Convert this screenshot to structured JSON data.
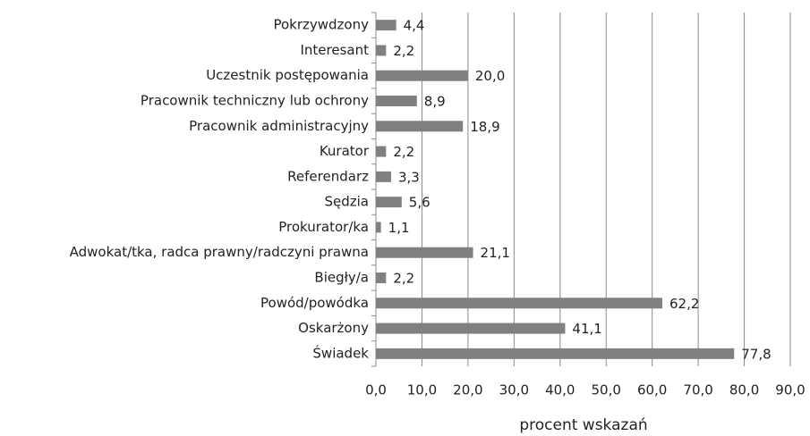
{
  "chart_data": {
    "type": "hbar",
    "x_label": "procent wskazań",
    "categories": [
      "Pokrzywdzony",
      "Interesant",
      "Uczestnik postępowania",
      "Pracownik techniczny lub ochrony",
      "Pracownik administracyjny",
      "Kurator",
      "Referendarz",
      "Sędzia",
      "Prokurator/ka",
      "Adwokat/tka, radca prawny/radczyni prawna",
      "Biegły/a",
      "Powód/powódka",
      "Oskarżony",
      "Świadek"
    ],
    "values": [
      4.4,
      2.2,
      20.0,
      8.9,
      18.9,
      2.2,
      3.3,
      5.6,
      1.1,
      21.1,
      2.2,
      62.2,
      41.1,
      77.8
    ],
    "value_labels": [
      "4,4",
      "2,2",
      "20,0",
      "8,9",
      "18,9",
      "2,2",
      "3,3",
      "5,6",
      "1,1",
      "21,1",
      "2,2",
      "62,2",
      "41,1",
      "77,8"
    ],
    "color": "#808080",
    "xlim": [
      0,
      90
    ],
    "xticks": [
      {
        "value": 0,
        "label": "0,0"
      },
      {
        "value": 10,
        "label": "10,0"
      },
      {
        "value": 20,
        "label": "20,0"
      },
      {
        "value": 30,
        "label": "30,0"
      },
      {
        "value": 40,
        "label": "40,0"
      },
      {
        "value": 50,
        "label": "50,0"
      },
      {
        "value": 60,
        "label": "60,0"
      },
      {
        "value": 70,
        "label": "70,0"
      },
      {
        "value": 80,
        "label": "80,0"
      },
      {
        "value": 90,
        "label": "90,0"
      }
    ],
    "grid": true
  }
}
